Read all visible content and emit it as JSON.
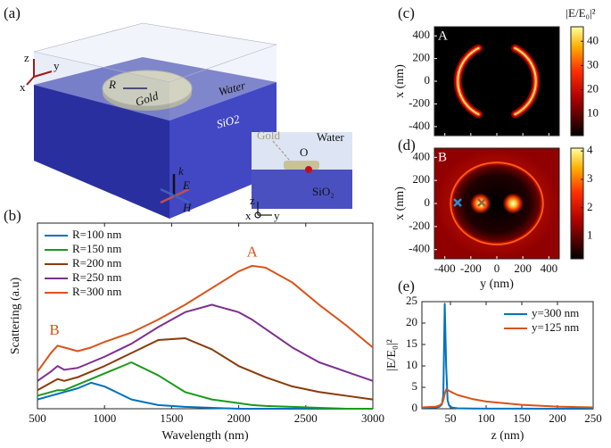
{
  "figure": {
    "panels": [
      "(a)",
      "(b)",
      "(c)",
      "(d)",
      "(e)"
    ],
    "diagram": {
      "z": "z",
      "y": "y",
      "x": "x",
      "radius": "R",
      "gold": "Gold",
      "water": "Water",
      "substrate": "SiO2",
      "k": "k",
      "e": "E",
      "h": "H",
      "inset": {
        "gold": "Gold",
        "water": "Water",
        "origin": "O",
        "substrate": "SiO₂",
        "z": "z",
        "x": "x",
        "y": "y"
      }
    }
  },
  "chart_data": [
    {
      "type": "line",
      "xlabel": "Wavelength (nm)",
      "ylabel": "Scattering (a.u)",
      "x": [
        500,
        600,
        650,
        700,
        800,
        900,
        1000,
        1200,
        1400,
        1600,
        1800,
        2000,
        2100,
        2200,
        2400,
        2600,
        2800,
        3000
      ],
      "xlim": [
        500,
        3000
      ],
      "xticks": [
        500,
        1000,
        1500,
        2000,
        2500,
        3000
      ],
      "ylim": [
        0,
        1
      ],
      "legend": "upper left",
      "annotations": [
        "A",
        "B"
      ],
      "series": [
        {
          "name": "R=100 nm",
          "color": "#0072bd",
          "values": [
            0.05,
            0.07,
            0.08,
            0.09,
            0.11,
            0.14,
            0.12,
            0.05,
            0.02,
            0.01,
            0.005,
            0,
            0,
            0,
            0,
            0,
            0,
            0
          ]
        },
        {
          "name": "R=150 nm",
          "color": "#1a9a1a",
          "values": [
            0.07,
            0.09,
            0.1,
            0.1,
            0.13,
            0.16,
            0.19,
            0.25,
            0.18,
            0.09,
            0.05,
            0.03,
            0.02,
            0.015,
            0.01,
            0.005,
            0,
            0
          ]
        },
        {
          "name": "R=200 nm",
          "color": "#8b3a0a",
          "values": [
            0.1,
            0.14,
            0.16,
            0.15,
            0.17,
            0.2,
            0.23,
            0.3,
            0.37,
            0.38,
            0.32,
            0.23,
            0.2,
            0.17,
            0.12,
            0.09,
            0.07,
            0.05
          ]
        },
        {
          "name": "R=250 nm",
          "color": "#7e2f8e",
          "values": [
            0.15,
            0.2,
            0.23,
            0.21,
            0.22,
            0.25,
            0.28,
            0.35,
            0.44,
            0.52,
            0.56,
            0.52,
            0.48,
            0.43,
            0.33,
            0.25,
            0.2,
            0.15
          ]
        },
        {
          "name": "R=300 nm",
          "color": "#d95319",
          "values": [
            0.2,
            0.3,
            0.34,
            0.33,
            0.31,
            0.33,
            0.36,
            0.41,
            0.48,
            0.56,
            0.65,
            0.74,
            0.77,
            0.76,
            0.68,
            0.56,
            0.45,
            0.33
          ]
        }
      ]
    },
    {
      "type": "heatmap",
      "label": "A",
      "ylabel": "x (nm)",
      "xlim": [
        -480,
        480
      ],
      "ylim": [
        -480,
        480
      ],
      "xticks": [
        -400,
        -200,
        0,
        200,
        400
      ],
      "yticks": [
        -400,
        -200,
        0,
        200,
        400
      ],
      "show_xtick_labels": false,
      "colorbar_label": "|E/E₀|²",
      "clim": [
        1,
        46
      ],
      "cticks": [
        10,
        20,
        30,
        40
      ]
    },
    {
      "type": "heatmap",
      "label": "B",
      "xlabel": "y (nm)",
      "ylabel": "x (nm)",
      "xlim": [
        -480,
        480
      ],
      "ylim": [
        -480,
        480
      ],
      "xticks": [
        -400,
        -200,
        0,
        200,
        400
      ],
      "yticks": [
        -400,
        -200,
        0,
        200,
        400
      ],
      "show_xtick_labels": true,
      "clim": [
        0.2,
        4.1
      ],
      "cticks": [
        1,
        2,
        3,
        4
      ]
    },
    {
      "type": "line",
      "xlabel": "z (nm)",
      "ylabel": "|E/E₀|²",
      "x": [
        10,
        30,
        35,
        38,
        40,
        42,
        44,
        46,
        48,
        50,
        55,
        60,
        80,
        100,
        150,
        200,
        250
      ],
      "xlim": [
        10,
        250
      ],
      "xticks": [
        50,
        100,
        150,
        200,
        250
      ],
      "ylim": [
        0,
        25
      ],
      "yticks": [
        0,
        5,
        10,
        15,
        20,
        25
      ],
      "legend": "upper right",
      "series": [
        {
          "name": "y=300 nm",
          "color": "#0072bd",
          "values": [
            0.2,
            0.3,
            0.5,
            1,
            3,
            24.5,
            10,
            2,
            0.8,
            0.4,
            0.2,
            0.1,
            0.05,
            0.03,
            0.02,
            0.01,
            0.01
          ]
        },
        {
          "name": "y=125 nm",
          "color": "#d95319",
          "values": [
            0.3,
            0.5,
            0.8,
            1.2,
            2,
            3.5,
            4.5,
            4.4,
            4.2,
            4.0,
            3.6,
            3.2,
            2.3,
            1.7,
            0.9,
            0.5,
            0.3
          ]
        }
      ]
    }
  ]
}
